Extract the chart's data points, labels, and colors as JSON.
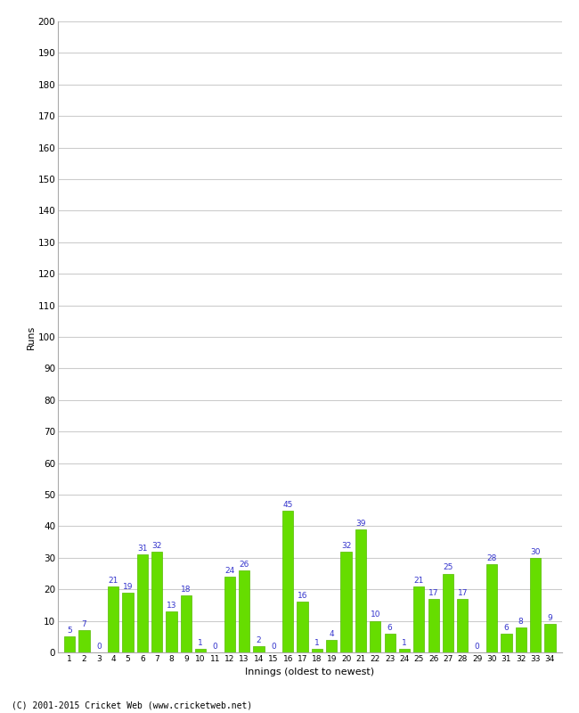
{
  "innings": [
    1,
    2,
    3,
    4,
    5,
    6,
    7,
    8,
    9,
    10,
    11,
    12,
    13,
    14,
    15,
    16,
    17,
    18,
    19,
    20,
    21,
    22,
    23,
    24,
    25,
    26,
    27,
    28,
    29,
    30,
    31,
    32,
    33,
    34
  ],
  "runs": [
    5,
    7,
    0,
    21,
    19,
    31,
    32,
    13,
    18,
    1,
    0,
    24,
    26,
    2,
    0,
    45,
    16,
    1,
    4,
    32,
    39,
    10,
    6,
    1,
    21,
    17,
    25,
    17,
    0,
    28,
    6,
    8,
    30,
    9
  ],
  "bar_color": "#66dd00",
  "bar_edge_color": "#55bb00",
  "label_color": "#3333cc",
  "ylabel": "Runs",
  "xlabel": "Innings (oldest to newest)",
  "ylim": [
    0,
    200
  ],
  "yticks": [
    0,
    10,
    20,
    30,
    40,
    50,
    60,
    70,
    80,
    90,
    100,
    110,
    120,
    130,
    140,
    150,
    160,
    170,
    180,
    190,
    200
  ],
  "footer": "(C) 2001-2015 Cricket Web (www.cricketweb.net)",
  "background_color": "#ffffff",
  "grid_color": "#cccccc"
}
